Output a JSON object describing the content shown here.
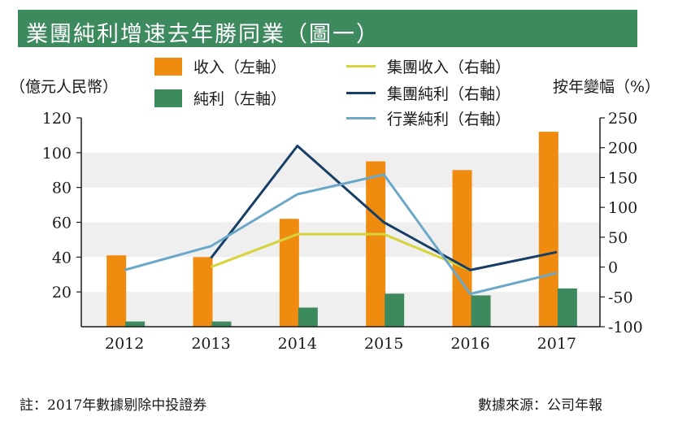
{
  "title": "業團純利增速去年勝同業（圖一）",
  "note": "註：2017年數據剔除中投證券",
  "source": "數據來源：公司年報",
  "colors": {
    "title_bg": "#3d8a5e",
    "revenue": "#ef8c10",
    "profit": "#3d8a5e",
    "group_revenue": "#d6d43a",
    "group_profit": "#173f66",
    "industry_profit": "#6ba8c8",
    "band": "#efefef"
  },
  "chart_data": {
    "type": "bar",
    "categories": [
      "2012",
      "2013",
      "2014",
      "2015",
      "2016",
      "2017"
    ],
    "ylabel": "（億元人民幣）",
    "y2label": "按年變幅（%）",
    "ylim": [
      0,
      120
    ],
    "y2lim": [
      -100,
      250
    ],
    "yticks": [
      "20",
      "40",
      "60",
      "80",
      "100",
      "120"
    ],
    "y2ticks": [
      "-100",
      "-50",
      "0",
      "50",
      "100",
      "150",
      "200",
      "250"
    ],
    "bar_series": [
      {
        "name": "收入（左軸）",
        "values": [
          41,
          40,
          62,
          95,
          90,
          112
        ]
      },
      {
        "name": "純利（左軸）",
        "values": [
          3,
          3,
          11,
          19,
          18,
          22
        ]
      }
    ],
    "line_series": [
      {
        "name": "集團收入（右軸）",
        "values": [
          null,
          0,
          55,
          55,
          -5,
          null
        ]
      },
      {
        "name": "集團純利（右軸）",
        "values": [
          null,
          15,
          203,
          75,
          -5,
          25
        ]
      },
      {
        "name": "行業純利（右軸）",
        "values": [
          -5,
          35,
          122,
          155,
          -45,
          -10
        ]
      }
    ]
  }
}
